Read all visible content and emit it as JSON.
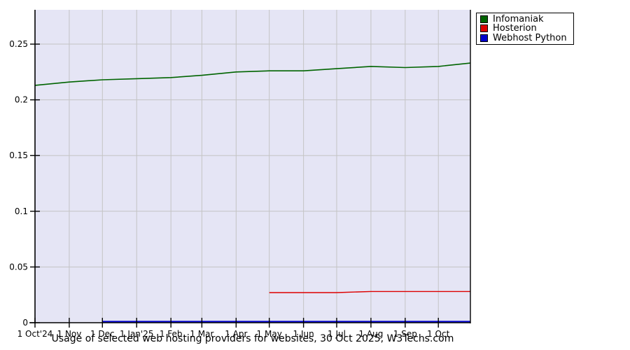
{
  "caption": "Usage of selected web hosting providers for websites, 30 Oct 2025, W3Techs.com",
  "colors": {
    "page_bg": "#ffffff",
    "plot_bg": "#e5e5f5",
    "grid": "#c4c4c4",
    "axis": "#000000",
    "legend_border": "#000000",
    "legend_bg": "#ffffff"
  },
  "chart_data": {
    "type": "line",
    "title": "Usage of selected web hosting providers for websites, 30 Oct 2025, W3Techs.com",
    "xlabel": "",
    "ylabel": "",
    "grid": true,
    "legend_position": "top-right-outside",
    "ylim": [
      0,
      0.2808
    ],
    "y_tick_labels": [
      "0",
      "0.05",
      "0.1",
      "0.15",
      "0.2",
      "0.25"
    ],
    "x_span_days": 394,
    "x_ticks": [
      {
        "label": "1 Oct'24",
        "day": 0
      },
      {
        "label": "1 Nov",
        "day": 31
      },
      {
        "label": "1 Dec",
        "day": 61
      },
      {
        "label": "1 Jan'25",
        "day": 92
      },
      {
        "label": "1 Feb",
        "day": 123
      },
      {
        "label": "1 Mar",
        "day": 151
      },
      {
        "label": "1 Apr",
        "day": 182
      },
      {
        "label": "1 May",
        "day": 212
      },
      {
        "label": "1 Jun",
        "day": 243
      },
      {
        "label": "1 Jul",
        "day": 273
      },
      {
        "label": "1 Aug",
        "day": 304
      },
      {
        "label": "1 Sep",
        "day": 335
      },
      {
        "label": "1 Oct",
        "day": 365
      }
    ],
    "series": [
      {
        "name": "Infomaniak",
        "color": "#006400",
        "stroke_width": 1.6,
        "points": [
          [
            0,
            0.213
          ],
          [
            31,
            0.216
          ],
          [
            61,
            0.218
          ],
          [
            92,
            0.219
          ],
          [
            123,
            0.22
          ],
          [
            151,
            0.222
          ],
          [
            182,
            0.225
          ],
          [
            212,
            0.226
          ],
          [
            243,
            0.226
          ],
          [
            273,
            0.228
          ],
          [
            304,
            0.23
          ],
          [
            335,
            0.229
          ],
          [
            365,
            0.23
          ],
          [
            394,
            0.233
          ]
        ]
      },
      {
        "name": "Hosterion",
        "color": "#dd0000",
        "stroke_width": 1.4,
        "points": [
          [
            212,
            0.027
          ],
          [
            243,
            0.027
          ],
          [
            273,
            0.027
          ],
          [
            304,
            0.028
          ],
          [
            335,
            0.028
          ],
          [
            365,
            0.028
          ],
          [
            394,
            0.028
          ]
        ]
      },
      {
        "name": "Webhost Python",
        "color": "#0000cc",
        "stroke_width": 2,
        "points": [
          [
            61,
            0.001
          ],
          [
            394,
            0.001
          ]
        ]
      }
    ]
  }
}
